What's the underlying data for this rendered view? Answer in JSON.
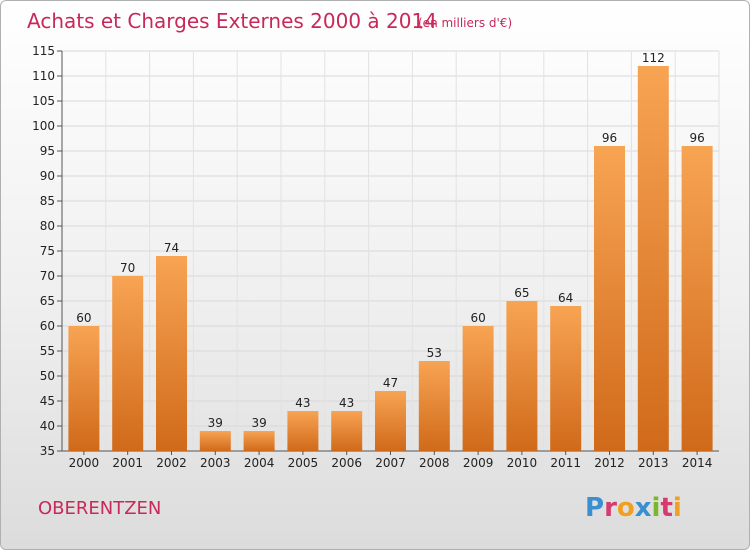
{
  "chart_data": {
    "type": "bar",
    "title": "Achats et Charges Externes 2000 à 2014",
    "subtitle": "(en milliers d'€)",
    "categories": [
      "2000",
      "2001",
      "2002",
      "2003",
      "2004",
      "2005",
      "2006",
      "2007",
      "2008",
      "2009",
      "2010",
      "2011",
      "2012",
      "2013",
      "2014"
    ],
    "values": [
      60,
      70,
      74,
      39,
      39,
      43,
      43,
      47,
      53,
      60,
      65,
      64,
      96,
      112,
      96
    ],
    "ylim": [
      35,
      115
    ],
    "yticks": [
      35,
      40,
      45,
      50,
      55,
      60,
      65,
      70,
      75,
      80,
      85,
      90,
      95,
      100,
      105,
      110,
      115
    ],
    "grid": true,
    "bar_color": "#f0913a"
  },
  "footer": {
    "place": "OBERENTZEN",
    "brand": "Proxiti",
    "brand_colors": [
      "#3a8fd0",
      "#d63a6e",
      "#f0a020",
      "#3a8fd0",
      "#7ab82a",
      "#d63a6e",
      "#f0a020"
    ]
  }
}
